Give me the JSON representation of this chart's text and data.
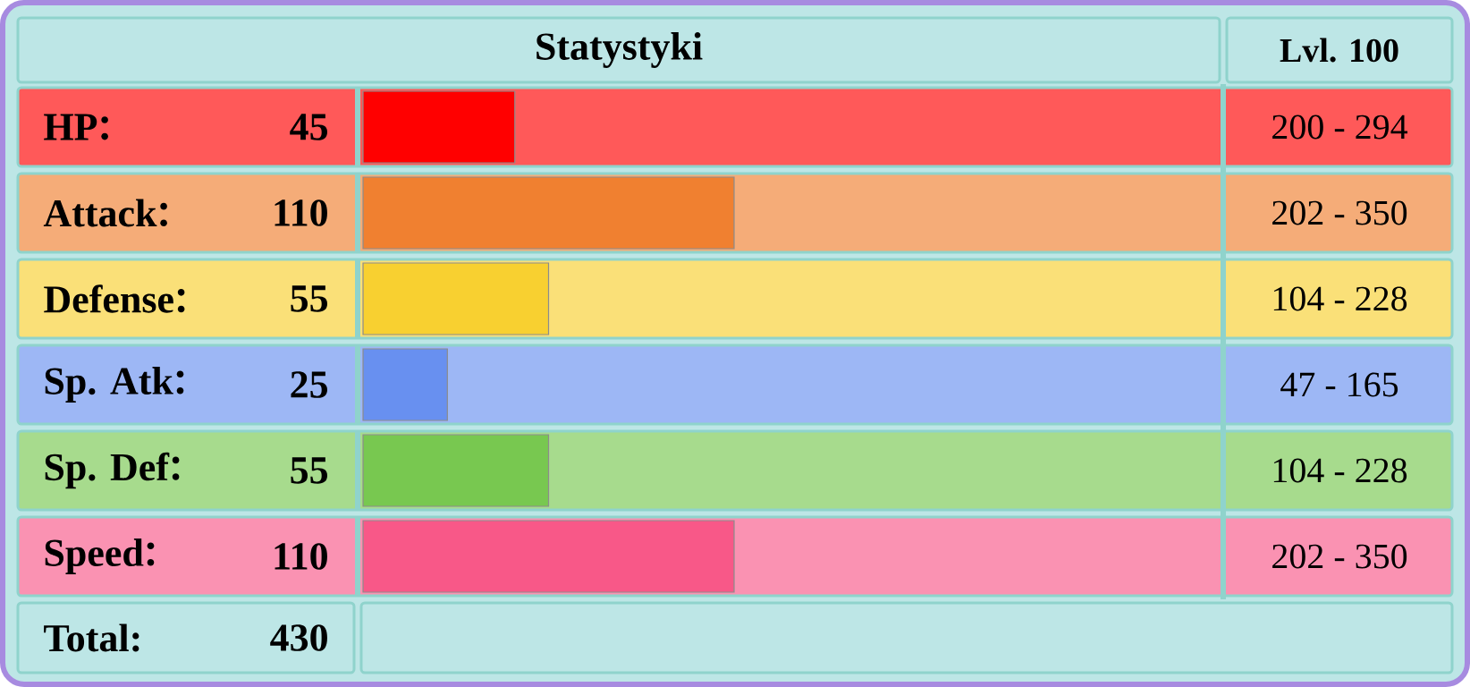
{
  "chart_data": {
    "type": "bar",
    "orientation": "horizontal",
    "title": "Statystyki",
    "subtitle": "Lvl. 100",
    "categories": [
      "HP",
      "Attack",
      "Defense",
      "Sp. Atk",
      "Sp. Def",
      "Speed"
    ],
    "values": [
      45,
      110,
      55,
      25,
      55,
      110
    ],
    "colors": [
      "#ff0000",
      "#f08030",
      "#f8d030",
      "#6890f0",
      "#78c850",
      "#f85888"
    ],
    "xlim": [
      0,
      255
    ],
    "data_labels": true,
    "annotations": [
      "200 - 294",
      "202 - 350",
      "104 - 228",
      "47 - 165",
      "104 - 228",
      "202 - 350",
      "Total:",
      "430"
    ]
  }
}
